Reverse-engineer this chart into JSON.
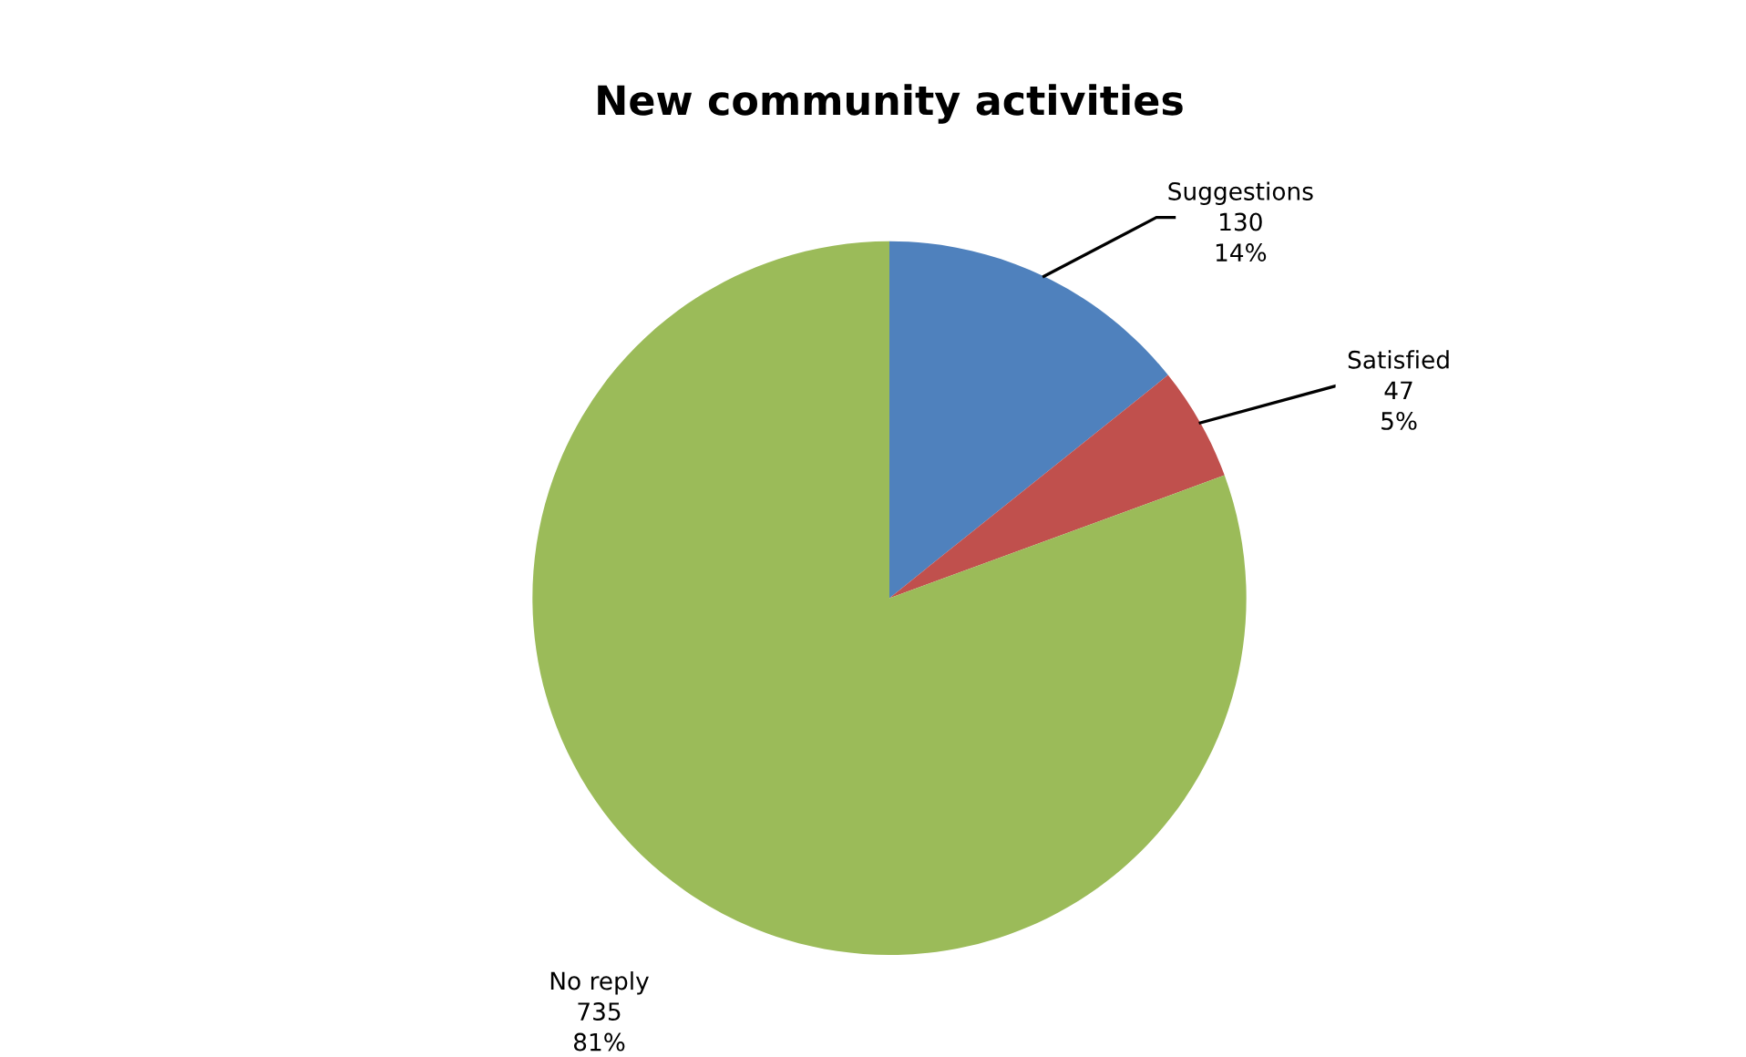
{
  "chart_data": {
    "type": "pie",
    "title": "New community activities",
    "categories": [
      "Suggestions",
      "Satisfied",
      "No reply"
    ],
    "values": [
      130,
      47,
      735
    ],
    "colors": [
      "#4f81bd",
      "#c0504d",
      "#9bbb59"
    ],
    "value_labels": [
      "130\n14%",
      "47\n5%",
      "735\n81%"
    ],
    "legend": false
  }
}
